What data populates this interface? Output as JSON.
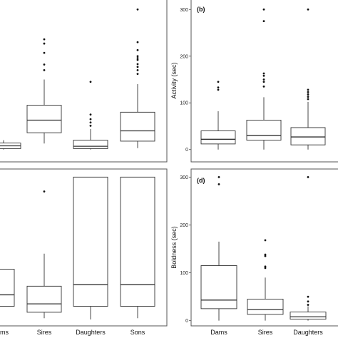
{
  "chart_data": [
    {
      "panel": "a",
      "type": "box",
      "categories": [
        "Dams",
        "Sires",
        "Daughters",
        "Sons"
      ],
      "visible_category_labels": [],
      "boxes": [
        {
          "category": "Dams",
          "whisker_low": 0,
          "q1": 2,
          "median": 8,
          "q3": 14,
          "whisker_high": 20,
          "outliers": []
        },
        {
          "category": "Sires",
          "whisker_low": 13,
          "q1": 36,
          "median": 63,
          "q3": 95,
          "whisker_high": 150,
          "outliers": [
            170,
            182,
            207,
            227,
            236
          ]
        },
        {
          "category": "Daughters",
          "whisker_low": 0,
          "q1": 2,
          "median": 7,
          "q3": 20,
          "whisker_high": 44,
          "outliers": [
            51,
            58,
            65,
            75,
            145
          ]
        },
        {
          "category": "Sons",
          "whisker_low": 3,
          "q1": 18,
          "median": 40,
          "q3": 80,
          "whisker_high": 140,
          "outliers": [
            162,
            170,
            177,
            183,
            192,
            196,
            200,
            213,
            230,
            300
          ]
        }
      ],
      "ylim": [
        -5,
        305
      ],
      "yticks": [],
      "ylabel": "",
      "xlabel": "",
      "grid": false
    },
    {
      "panel": "b",
      "type": "box",
      "categories": [
        "Dams",
        "Sires",
        "Daughters",
        "Sons"
      ],
      "visible_category_labels": [],
      "boxes": [
        {
          "category": "Dams",
          "whisker_low": 0,
          "q1": 12,
          "median": 22,
          "q3": 40,
          "whisker_high": 82,
          "outliers": [
            128,
            133,
            145
          ]
        },
        {
          "category": "Sires",
          "whisker_low": 0,
          "q1": 20,
          "median": 30,
          "q3": 63,
          "whisker_high": 112,
          "outliers": [
            135,
            145,
            150,
            158,
            163,
            275,
            300
          ]
        },
        {
          "category": "Daughters",
          "whisker_low": 0,
          "q1": 10,
          "median": 27,
          "q3": 47,
          "whisker_high": 102,
          "outliers": [
            108,
            113,
            118,
            123,
            128,
            300
          ]
        }
      ],
      "ylim": [
        -5,
        305
      ],
      "yticks": [
        0,
        100,
        200,
        300
      ],
      "ylabel": "Activity (sec)",
      "xlabel": "",
      "grid": false
    },
    {
      "panel": "c",
      "type": "box",
      "categories": [
        "Dams",
        "Sires",
        "Daughters",
        "Sons"
      ],
      "visible_category_labels": [
        "Dams",
        "Sires",
        "Daughters",
        "Sons"
      ],
      "boxes": [
        {
          "category": "Dams",
          "whisker_low": 0,
          "q1": 60,
          "median": 108,
          "q3": 215,
          "whisker_high": 300,
          "outliers": []
        },
        {
          "category": "Sires",
          "whisker_low": 10,
          "q1": 35,
          "median": 70,
          "q3": 144,
          "whisker_high": 280,
          "outliers": [
            540
          ]
        },
        {
          "category": "Daughters",
          "whisker_low": 5,
          "q1": 60,
          "median": 150,
          "q3": 600,
          "whisker_high": 600,
          "outliers": []
        },
        {
          "category": "Sons",
          "whisker_low": 10,
          "q1": 60,
          "median": 150,
          "q3": 600,
          "whisker_high": 600,
          "outliers": []
        }
      ],
      "ylim": [
        -10,
        610
      ],
      "yticks": [],
      "ylabel": "",
      "xlabel": "",
      "grid": false
    },
    {
      "panel": "d",
      "type": "box",
      "categories": [
        "Dams",
        "Sires",
        "Daughters"
      ],
      "visible_category_labels": [
        "Dams",
        "Sires",
        "Daughters"
      ],
      "boxes": [
        {
          "category": "Dams",
          "whisker_low": 0,
          "q1": 25,
          "median": 43,
          "q3": 115,
          "whisker_high": 165,
          "outliers": [
            285,
            300
          ]
        },
        {
          "category": "Sires",
          "whisker_low": 0,
          "q1": 13,
          "median": 23,
          "q3": 45,
          "whisker_high": 90,
          "outliers": [
            110,
            113,
            135,
            138,
            168
          ]
        },
        {
          "category": "Daughters",
          "whisker_low": 0,
          "q1": 3,
          "median": 8,
          "q3": 18,
          "whisker_high": 30,
          "outliers": [
            33,
            40,
            50,
            300
          ]
        }
      ],
      "ylim": [
        -5,
        305
      ],
      "yticks": [
        0,
        100,
        200,
        300
      ],
      "ylabel": "Boldness (sec)",
      "xlabel": "",
      "grid": false
    }
  ],
  "panel_tags": {
    "b": "(b)",
    "d": "(d)"
  },
  "colors": {
    "box_stroke": "#333333",
    "frame": "#555555",
    "outlier": "#111111",
    "median": "#333333"
  }
}
